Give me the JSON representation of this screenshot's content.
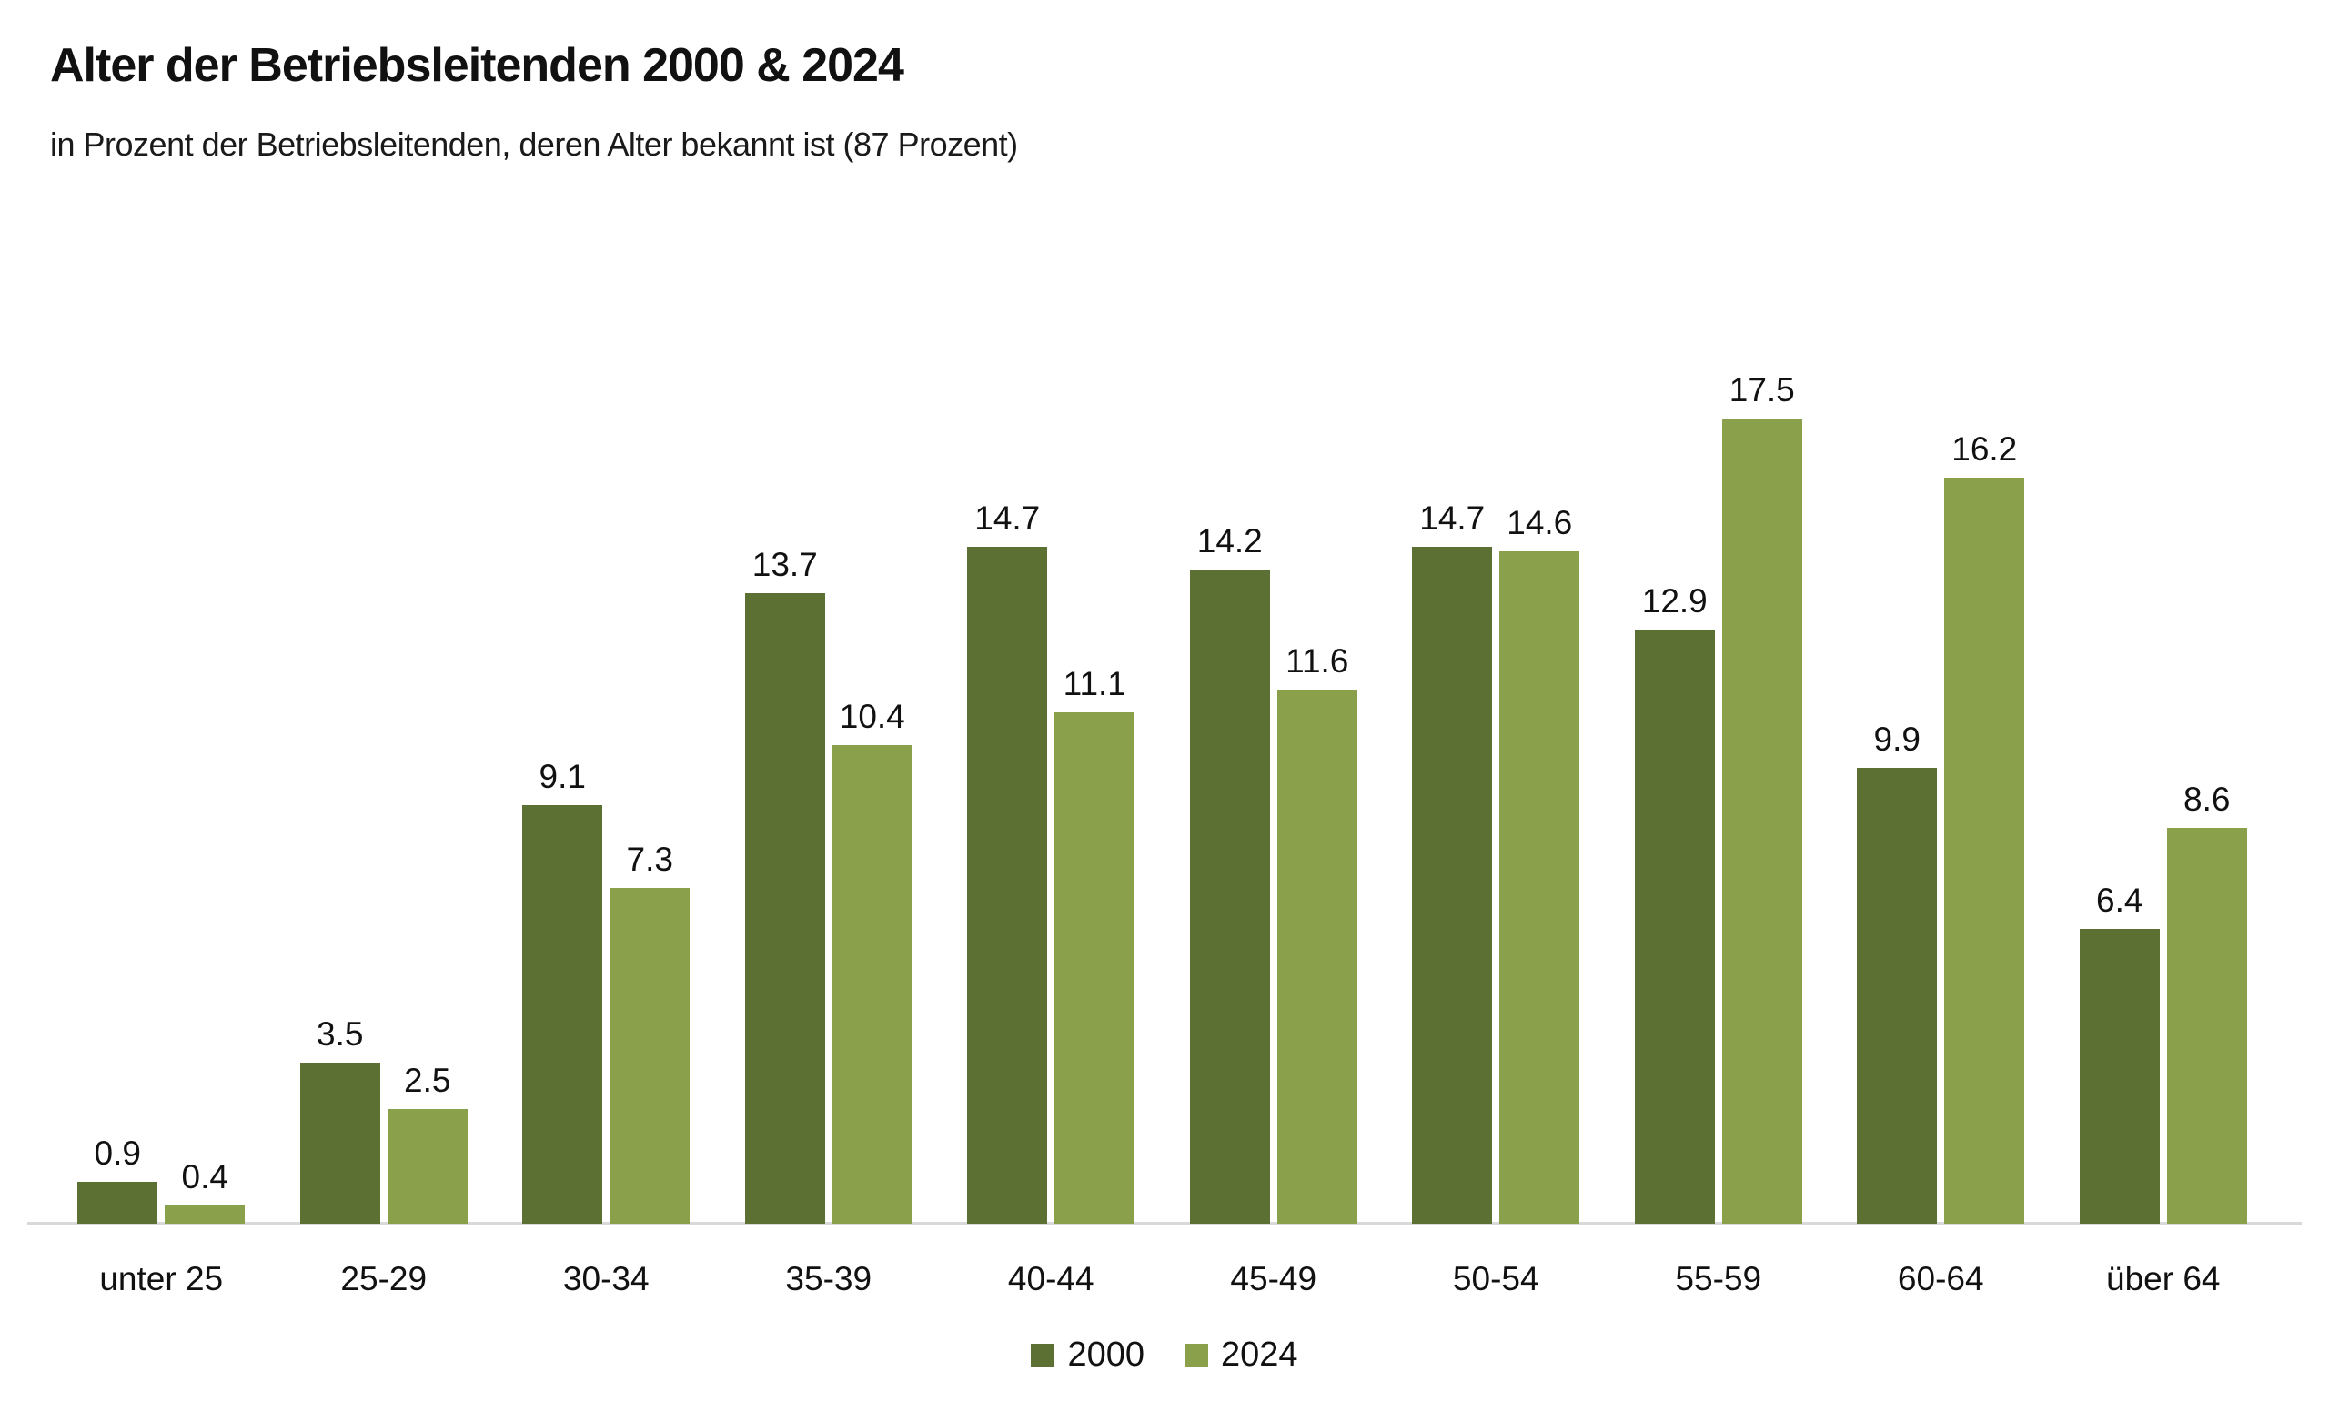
{
  "header": {
    "title": "Alter der Betriebsleitenden 2000 & 2024",
    "subtitle": "in Prozent der Betriebsleitenden, deren Alter bekannt ist (87 Prozent)"
  },
  "colors": {
    "series_2000": "#5c7033",
    "series_2024": "#8aa04b",
    "axis_line": "#d9d9d9",
    "text": "#111111"
  },
  "legend": {
    "items": [
      {
        "label": "2000",
        "color": "#5c7033"
      },
      {
        "label": "2024",
        "color": "#8aa04b"
      }
    ]
  },
  "chart_data": {
    "type": "bar",
    "title": "Alter der Betriebsleitenden 2000 & 2024",
    "subtitle": "in Prozent der Betriebsleitenden, deren Alter bekannt ist (87 Prozent)",
    "categories": [
      "unter 25",
      "25-29",
      "30-34",
      "35-39",
      "40-44",
      "45-49",
      "50-54",
      "55-59",
      "60-64",
      "über 64"
    ],
    "series": [
      {
        "name": "2000",
        "color": "#5c7033",
        "values": [
          0.9,
          3.5,
          9.1,
          13.7,
          14.7,
          14.2,
          14.7,
          12.9,
          9.9,
          6.4
        ]
      },
      {
        "name": "2024",
        "color": "#8aa04b",
        "values": [
          0.4,
          2.5,
          7.3,
          10.4,
          11.1,
          11.6,
          14.6,
          17.5,
          16.2,
          8.6
        ]
      }
    ],
    "xlabel": "",
    "ylabel": "",
    "ylim": [
      0,
      18
    ],
    "grid": false,
    "value_labels": true,
    "legend_position": "bottom"
  }
}
